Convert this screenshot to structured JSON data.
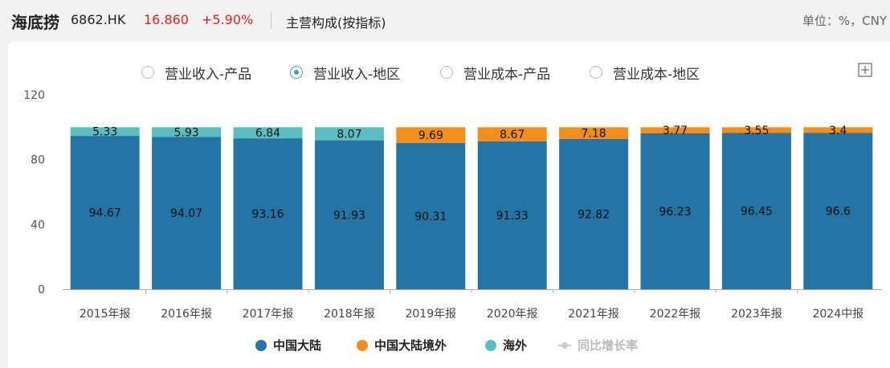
{
  "header": {
    "name": "海底捞",
    "code": "6862.HK",
    "price": "16.860",
    "change": "+5.90%",
    "title": "主营构成(按指标)",
    "unit": "单位：%，CNY",
    "price_color": "#e2231a"
  },
  "tabs": [
    {
      "label": "营业收入-产品",
      "selected": false
    },
    {
      "label": "营业收入-地区",
      "selected": true
    },
    {
      "label": "营业成本-产品",
      "selected": false
    },
    {
      "label": "营业成本-地区",
      "selected": false
    }
  ],
  "icons": {
    "expand": "expand-icon"
  },
  "chart_data": {
    "type": "bar",
    "stacked": true,
    "categories": [
      "2015年报",
      "2016年报",
      "2017年报",
      "2018年报",
      "2019年报",
      "2020年报",
      "2021年报",
      "2022年报",
      "2023年报",
      "2024中报"
    ],
    "series": [
      {
        "name": "中国大陆",
        "color": "#2574a4",
        "values": [
          94.67,
          94.07,
          93.16,
          91.93,
          90.31,
          91.33,
          92.82,
          96.23,
          96.45,
          96.6
        ]
      },
      {
        "name": "中国大陆境外",
        "color": "#f28e1b",
        "values": [
          null,
          null,
          null,
          null,
          9.69,
          8.67,
          7.18,
          3.77,
          3.55,
          3.4
        ]
      },
      {
        "name": "海外",
        "color": "#5bbfc2",
        "values": [
          5.33,
          5.93,
          6.84,
          8.07,
          null,
          null,
          null,
          null,
          null,
          null
        ]
      }
    ],
    "legend_extra": {
      "name": "同比增长率",
      "color": "#cccccc"
    },
    "ylim": [
      0,
      120
    ],
    "yticks": [
      0,
      40,
      80,
      120
    ],
    "legend_position": "bottom",
    "grid": false
  }
}
